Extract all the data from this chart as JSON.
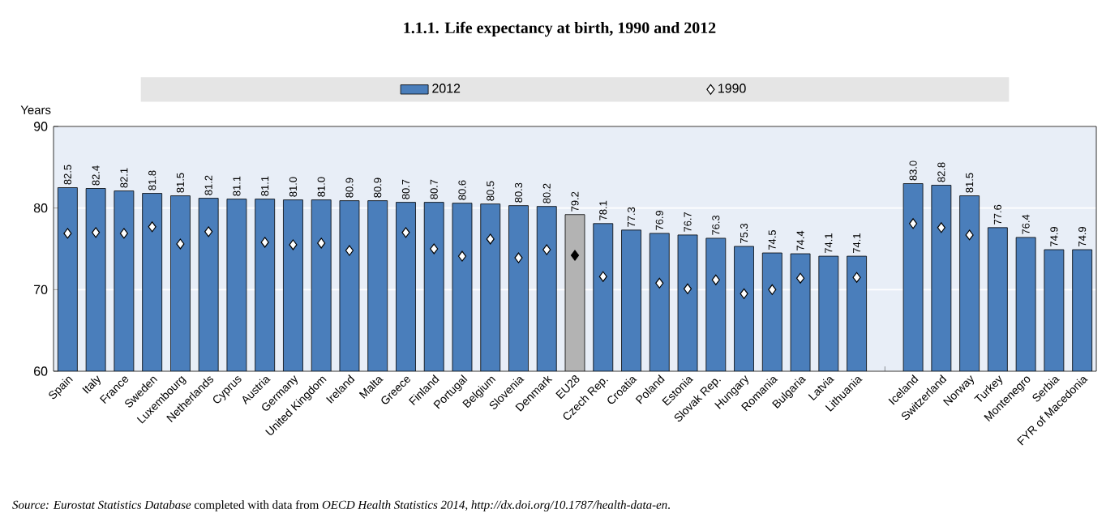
{
  "chart_data": {
    "type": "bar",
    "title": "1.1.1. Life expectancy at birth, 1990 and 2012",
    "ylabel": "Years",
    "categories": [
      "Spain",
      "Italy",
      "France",
      "Sweden",
      "Luxembourg",
      "Netherlands",
      "Cyprus",
      "Austria",
      "Germany",
      "United Kingdom",
      "Ireland",
      "Malta",
      "Greece",
      "Finland",
      "Portugal",
      "Belgium",
      "Slovenia",
      "Denmark",
      "EU28",
      "Czech Rep.",
      "Croatia",
      "Poland",
      "Estonia",
      "Slovak Rep.",
      "Hungary",
      "Romania",
      "Bulgaria",
      "Latvia",
      "Lithuania",
      null,
      "Iceland",
      "Switzerland",
      "Norway",
      "Turkey",
      "Montenegro",
      "Serbia",
      "FYR of Macedonia"
    ],
    "series": [
      {
        "name": "2012",
        "color": "#4a7ebb",
        "colors": [
          "#4a7ebb",
          "#4a7ebb",
          "#4a7ebb",
          "#4a7ebb",
          "#4a7ebb",
          "#4a7ebb",
          "#4a7ebb",
          "#4a7ebb",
          "#4a7ebb",
          "#4a7ebb",
          "#4a7ebb",
          "#4a7ebb",
          "#4a7ebb",
          "#4a7ebb",
          "#4a7ebb",
          "#4a7ebb",
          "#4a7ebb",
          "#4a7ebb",
          "#b3b3b3",
          "#4a7ebb",
          "#4a7ebb",
          "#4a7ebb",
          "#4a7ebb",
          "#4a7ebb",
          "#4a7ebb",
          "#4a7ebb",
          "#4a7ebb",
          "#4a7ebb",
          "#4a7ebb",
          "#4a7ebb",
          "#4a7ebb",
          "#4a7ebb",
          "#4a7ebb",
          "#4a7ebb",
          "#4a7ebb",
          "#4a7ebb",
          "#4a7ebb"
        ],
        "values": [
          82.5,
          82.4,
          82.1,
          81.8,
          81.5,
          81.2,
          81.1,
          81.1,
          81.0,
          81.0,
          80.9,
          80.9,
          80.7,
          80.7,
          80.6,
          80.5,
          80.3,
          80.2,
          79.2,
          78.1,
          77.3,
          76.9,
          76.7,
          76.3,
          75.3,
          74.5,
          74.4,
          74.1,
          74.1,
          null,
          83.0,
          82.8,
          81.5,
          77.6,
          76.4,
          74.9,
          74.9
        ],
        "value_labels": [
          "82.5",
          "82.4",
          "82.1",
          "81.8",
          "81.5",
          "81.2",
          "81.1",
          "81.1",
          "81.0",
          "81.0",
          "80.9",
          "80.9",
          "80.7",
          "80.7",
          "80.6",
          "80.5",
          "80.3",
          "80.2",
          "79.2",
          "78.1",
          "77.3",
          "76.9",
          "76.7",
          "76.3",
          "75.3",
          "74.5",
          "74.4",
          "74.1",
          "74.1",
          null,
          "83.0",
          "82.8",
          "81.5",
          "77.6",
          "76.4",
          "74.9",
          "74.9"
        ]
      },
      {
        "name": "1990",
        "type": "scatter",
        "marker": "diamond",
        "color": "#ffffff",
        "colors": [
          "#ffffff",
          "#ffffff",
          "#ffffff",
          "#ffffff",
          "#ffffff",
          "#ffffff",
          "#ffffff",
          "#ffffff",
          "#ffffff",
          "#ffffff",
          "#ffffff",
          "#ffffff",
          "#ffffff",
          "#ffffff",
          "#ffffff",
          "#ffffff",
          "#ffffff",
          "#ffffff",
          "#000000",
          "#ffffff",
          "#ffffff",
          "#ffffff",
          "#ffffff",
          "#ffffff",
          "#ffffff",
          "#ffffff",
          "#ffffff",
          "#ffffff",
          "#ffffff",
          "#ffffff",
          "#ffffff",
          "#ffffff",
          "#ffffff",
          "#ffffff",
          "#ffffff",
          "#ffffff",
          "#ffffff"
        ],
        "values": [
          76.9,
          77.0,
          76.9,
          77.7,
          75.6,
          77.1,
          null,
          75.8,
          75.5,
          75.7,
          74.8,
          null,
          77.0,
          75.0,
          74.1,
          76.2,
          73.9,
          74.9,
          74.2,
          71.6,
          null,
          70.8,
          70.1,
          71.2,
          69.5,
          70.0,
          71.4,
          null,
          71.5,
          null,
          78.1,
          77.6,
          76.7,
          null,
          null,
          null,
          null
        ]
      }
    ],
    "ylim": [
      60,
      90
    ],
    "yticks": [
      60,
      70,
      80,
      90
    ],
    "grid": "y",
    "legend": "top",
    "annotations": [
      "*Source:  Eurostat Statistics Database* completed with data from *OECD Health Statistics 2014*, *http://dx.doi.org/10.1787/health-data-en*."
    ]
  }
}
